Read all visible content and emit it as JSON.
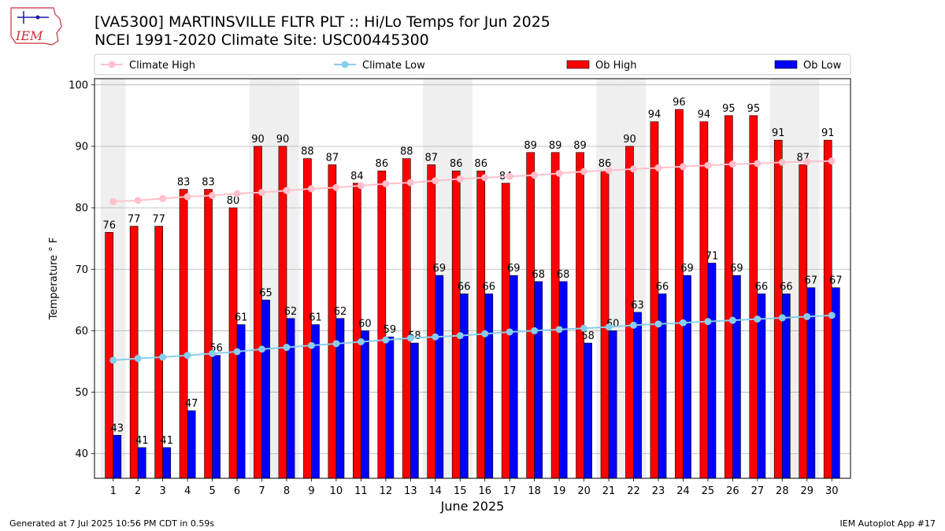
{
  "title_line1": "[VA5300] MARTINSVILLE FLTR PLT :: Hi/Lo Temps for Jun 2025",
  "title_line2": "NCEI 1991-2020 Climate Site: USC00445300",
  "logo_text": "IEM",
  "footer_left": "Generated at 7 Jul 2025 10:56 PM CDT in 0.59s",
  "footer_right": "IEM Autoplot App #17",
  "colors": {
    "ob_high": "#ff0000",
    "ob_low": "#0000ff",
    "climate_high": "#ffc0cb",
    "climate_low": "#87ceeb",
    "weekend_shade": "#efefef",
    "grid": "#b0b0b0"
  },
  "chart_data": {
    "type": "bar",
    "xlabel": "June 2025",
    "ylabel": "Temperature ° F",
    "ylim": [
      36,
      101
    ],
    "yticks": [
      40,
      50,
      60,
      70,
      80,
      90,
      100
    ],
    "grid": "horizontal",
    "legend_position": "top",
    "categories": [
      "1",
      "2",
      "3",
      "4",
      "5",
      "6",
      "7",
      "8",
      "9",
      "10",
      "11",
      "12",
      "13",
      "14",
      "15",
      "16",
      "17",
      "18",
      "19",
      "20",
      "21",
      "22",
      "23",
      "24",
      "25",
      "26",
      "27",
      "28",
      "29",
      "30"
    ],
    "shaded_days": [
      1,
      7,
      8,
      14,
      15,
      21,
      22,
      28,
      29
    ],
    "series": [
      {
        "name": "Ob High",
        "kind": "bar",
        "values": [
          76,
          77,
          77,
          83,
          83,
          80,
          90,
          90,
          88,
          87,
          84,
          86,
          88,
          87,
          86,
          86,
          84,
          89,
          89,
          89,
          86,
          90,
          94,
          96,
          94,
          95,
          95,
          91,
          87,
          91
        ]
      },
      {
        "name": "Ob Low",
        "kind": "bar",
        "values": [
          43,
          41,
          41,
          47,
          56,
          61,
          65,
          62,
          61,
          62,
          60,
          59,
          58,
          69,
          66,
          66,
          69,
          68,
          68,
          58,
          60,
          63,
          66,
          69,
          71,
          69,
          66,
          66,
          67,
          67
        ]
      },
      {
        "name": "Climate High",
        "kind": "line",
        "values": [
          81.0,
          81.2,
          81.5,
          81.8,
          82.0,
          82.3,
          82.5,
          82.8,
          83.1,
          83.3,
          83.6,
          83.9,
          84.1,
          84.4,
          84.7,
          84.9,
          85.1,
          85.3,
          85.6,
          85.9,
          86.1,
          86.3,
          86.5,
          86.7,
          86.9,
          87.1,
          87.2,
          87.4,
          87.5,
          87.6
        ]
      },
      {
        "name": "Climate Low",
        "kind": "line",
        "values": [
          55.2,
          55.5,
          55.7,
          56.0,
          56.3,
          56.6,
          57.0,
          57.3,
          57.6,
          57.9,
          58.2,
          58.5,
          58.8,
          59.0,
          59.2,
          59.5,
          59.8,
          60.0,
          60.2,
          60.4,
          60.6,
          60.9,
          61.1,
          61.3,
          61.5,
          61.7,
          61.9,
          62.1,
          62.3,
          62.5
        ]
      }
    ]
  }
}
